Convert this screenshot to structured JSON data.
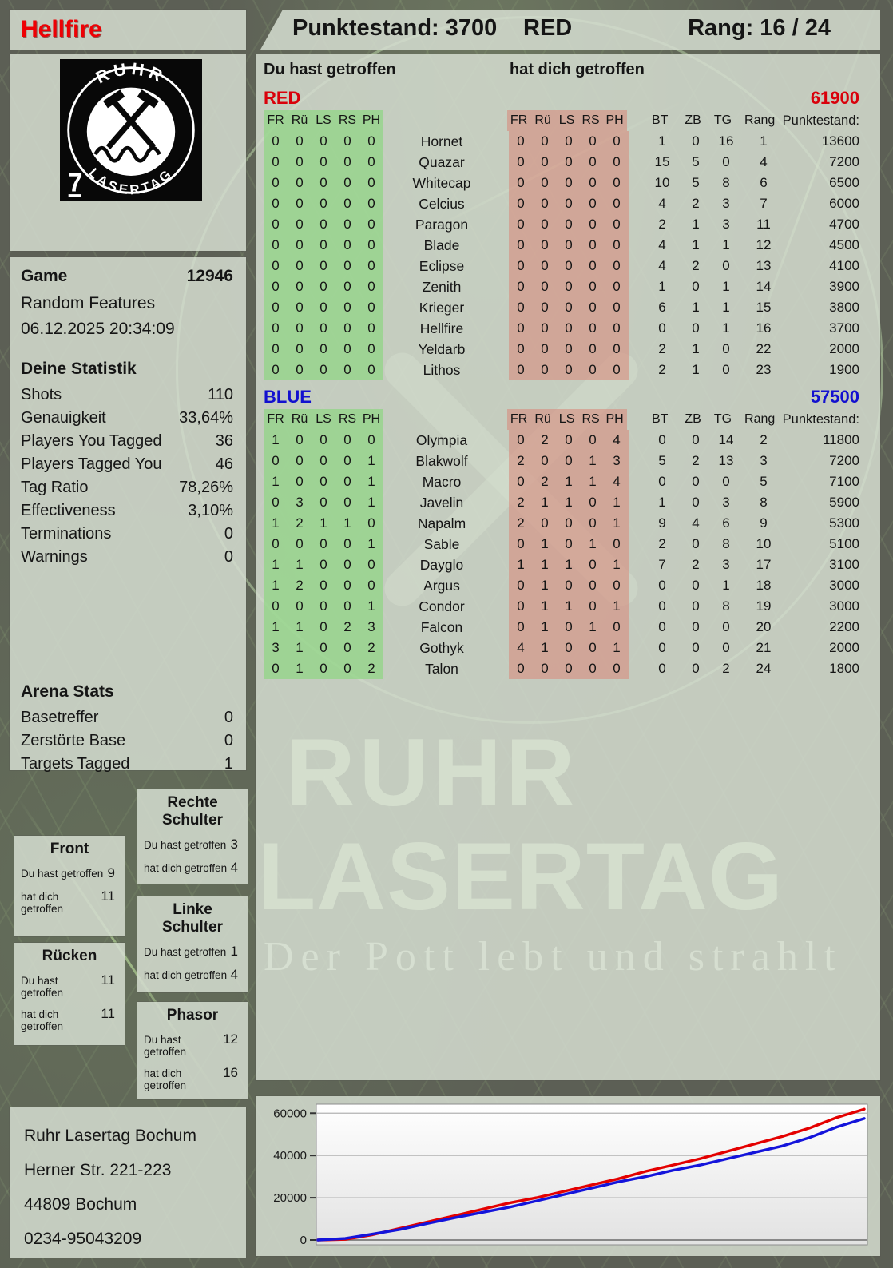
{
  "header": {
    "player": "Hellfire",
    "score": "Punktestand: 3700",
    "team": "RED",
    "rank": "Rang: 16 / 24"
  },
  "logo": {
    "arc_top": "RUHR",
    "arc_bottom": "LASERTAG",
    "corner": "7"
  },
  "game": {
    "label": "Game",
    "number": "12946",
    "mode": "Random Features",
    "datetime": "06.12.2025 20:34:09"
  },
  "your_stats": {
    "title": "Deine Statistik",
    "rows": [
      [
        "Shots",
        "110"
      ],
      [
        "Genauigkeit",
        "33,64%"
      ],
      [
        "Players You Tagged",
        "36"
      ],
      [
        "Players Tagged You",
        "46"
      ],
      [
        "Tag Ratio",
        "78,26%"
      ],
      [
        "Effectiveness",
        "3,10%"
      ],
      [
        "Terminations",
        "0"
      ],
      [
        "Warnings",
        "0"
      ]
    ]
  },
  "arena_stats": {
    "title": "Arena Stats",
    "rows": [
      [
        "Basetreffer",
        "0"
      ],
      [
        "Zerstörte Base",
        "0"
      ],
      [
        "Targets Tagged",
        "1"
      ]
    ]
  },
  "hitzones": {
    "you_label": "Du hast getroffen",
    "them_label": "hat dich getroffen",
    "boxes": [
      {
        "key": "rechte-schulter",
        "title": "Rechte Schulter",
        "you": "3",
        "them": "4"
      },
      {
        "key": "front",
        "title": "Front",
        "you": "9",
        "them": "11"
      },
      {
        "key": "linke-schulter",
        "title": "Linke Schulter",
        "you": "1",
        "them": "4"
      },
      {
        "key": "ruecken",
        "title": "Rücken",
        "you": "11",
        "them": "11"
      },
      {
        "key": "phasor",
        "title": "Phasor",
        "you": "12",
        "them": "16"
      }
    ]
  },
  "address": {
    "lines": [
      "Ruhr Lasertag Bochum",
      "Herner Str. 221-223",
      "44809 Bochum",
      "0234-95043209"
    ]
  },
  "scoreboard": {
    "you_header": "Du hast getroffen",
    "them_header": "hat dich getroffen",
    "zone_cols": [
      "FR",
      "Rü",
      "LS",
      "RS",
      "PH"
    ],
    "stat_cols": [
      "BT",
      "ZB",
      "TG",
      "Rang",
      "Punktestand:"
    ],
    "teams": [
      {
        "name": "RED",
        "total": "61900",
        "color": "#d9000b",
        "rows": [
          {
            "you": [
              0,
              0,
              0,
              0,
              0
            ],
            "name": "Hornet",
            "them": [
              0,
              0,
              0,
              0,
              0
            ],
            "stats": [
              1,
              0,
              16,
              1
            ],
            "score": "13600"
          },
          {
            "you": [
              0,
              0,
              0,
              0,
              0
            ],
            "name": "Quazar",
            "them": [
              0,
              0,
              0,
              0,
              0
            ],
            "stats": [
              15,
              5,
              0,
              4
            ],
            "score": "7200"
          },
          {
            "you": [
              0,
              0,
              0,
              0,
              0
            ],
            "name": "Whitecap",
            "them": [
              0,
              0,
              0,
              0,
              0
            ],
            "stats": [
              10,
              5,
              8,
              6
            ],
            "score": "6500"
          },
          {
            "you": [
              0,
              0,
              0,
              0,
              0
            ],
            "name": "Celcius",
            "them": [
              0,
              0,
              0,
              0,
              0
            ],
            "stats": [
              4,
              2,
              3,
              7
            ],
            "score": "6000"
          },
          {
            "you": [
              0,
              0,
              0,
              0,
              0
            ],
            "name": "Paragon",
            "them": [
              0,
              0,
              0,
              0,
              0
            ],
            "stats": [
              2,
              1,
              3,
              11
            ],
            "score": "4700"
          },
          {
            "you": [
              0,
              0,
              0,
              0,
              0
            ],
            "name": "Blade",
            "them": [
              0,
              0,
              0,
              0,
              0
            ],
            "stats": [
              4,
              1,
              1,
              12
            ],
            "score": "4500"
          },
          {
            "you": [
              0,
              0,
              0,
              0,
              0
            ],
            "name": "Eclipse",
            "them": [
              0,
              0,
              0,
              0,
              0
            ],
            "stats": [
              4,
              2,
              0,
              13
            ],
            "score": "4100"
          },
          {
            "you": [
              0,
              0,
              0,
              0,
              0
            ],
            "name": "Zenith",
            "them": [
              0,
              0,
              0,
              0,
              0
            ],
            "stats": [
              1,
              0,
              1,
              14
            ],
            "score": "3900"
          },
          {
            "you": [
              0,
              0,
              0,
              0,
              0
            ],
            "name": "Krieger",
            "them": [
              0,
              0,
              0,
              0,
              0
            ],
            "stats": [
              6,
              1,
              1,
              15
            ],
            "score": "3800"
          },
          {
            "you": [
              0,
              0,
              0,
              0,
              0
            ],
            "name": "Hellfire",
            "them": [
              0,
              0,
              0,
              0,
              0
            ],
            "stats": [
              0,
              0,
              1,
              16
            ],
            "score": "3700"
          },
          {
            "you": [
              0,
              0,
              0,
              0,
              0
            ],
            "name": "Yeldarb",
            "them": [
              0,
              0,
              0,
              0,
              0
            ],
            "stats": [
              2,
              1,
              0,
              22
            ],
            "score": "2000"
          },
          {
            "you": [
              0,
              0,
              0,
              0,
              0
            ],
            "name": "Lithos",
            "them": [
              0,
              0,
              0,
              0,
              0
            ],
            "stats": [
              2,
              1,
              0,
              23
            ],
            "score": "1900"
          }
        ]
      },
      {
        "name": "BLUE",
        "total": "57500",
        "color": "#1210cf",
        "rows": [
          {
            "you": [
              1,
              0,
              0,
              0,
              0
            ],
            "name": "Olympia",
            "them": [
              0,
              2,
              0,
              0,
              4
            ],
            "stats": [
              0,
              0,
              14,
              2
            ],
            "score": "11800"
          },
          {
            "you": [
              0,
              0,
              0,
              0,
              1
            ],
            "name": "Blakwolf",
            "them": [
              2,
              0,
              0,
              1,
              3
            ],
            "stats": [
              5,
              2,
              13,
              3
            ],
            "score": "7200"
          },
          {
            "you": [
              1,
              0,
              0,
              0,
              1
            ],
            "name": "Macro",
            "them": [
              0,
              2,
              1,
              1,
              4
            ],
            "stats": [
              0,
              0,
              0,
              5
            ],
            "score": "7100"
          },
          {
            "you": [
              0,
              3,
              0,
              0,
              1
            ],
            "name": "Javelin",
            "them": [
              2,
              1,
              1,
              0,
              1
            ],
            "stats": [
              1,
              0,
              3,
              8
            ],
            "score": "5900"
          },
          {
            "you": [
              1,
              2,
              1,
              1,
              0
            ],
            "name": "Napalm",
            "them": [
              2,
              0,
              0,
              0,
              1
            ],
            "stats": [
              9,
              4,
              6,
              9
            ],
            "score": "5300"
          },
          {
            "you": [
              0,
              0,
              0,
              0,
              1
            ],
            "name": "Sable",
            "them": [
              0,
              1,
              0,
              1,
              0
            ],
            "stats": [
              2,
              0,
              8,
              10
            ],
            "score": "5100"
          },
          {
            "you": [
              1,
              1,
              0,
              0,
              0
            ],
            "name": "Dayglo",
            "them": [
              1,
              1,
              1,
              0,
              1
            ],
            "stats": [
              7,
              2,
              3,
              17
            ],
            "score": "3100"
          },
          {
            "you": [
              1,
              2,
              0,
              0,
              0
            ],
            "name": "Argus",
            "them": [
              0,
              1,
              0,
              0,
              0
            ],
            "stats": [
              0,
              0,
              1,
              18
            ],
            "score": "3000"
          },
          {
            "you": [
              0,
              0,
              0,
              0,
              1
            ],
            "name": "Condor",
            "them": [
              0,
              1,
              1,
              0,
              1
            ],
            "stats": [
              0,
              0,
              8,
              19
            ],
            "score": "3000"
          },
          {
            "you": [
              1,
              1,
              0,
              2,
              3
            ],
            "name": "Falcon",
            "them": [
              0,
              1,
              0,
              1,
              0
            ],
            "stats": [
              0,
              0,
              0,
              20
            ],
            "score": "2200"
          },
          {
            "you": [
              3,
              1,
              0,
              0,
              2
            ],
            "name": "Gothyk",
            "them": [
              4,
              1,
              0,
              0,
              1
            ],
            "stats": [
              0,
              0,
              0,
              21
            ],
            "score": "2000"
          },
          {
            "you": [
              0,
              1,
              0,
              0,
              2
            ],
            "name": "Talon",
            "them": [
              0,
              0,
              0,
              0,
              0
            ],
            "stats": [
              0,
              0,
              2,
              24
            ],
            "score": "1800"
          }
        ]
      }
    ]
  },
  "watermark": {
    "line1": "RUHR",
    "line2": "LASERTAG",
    "tagline": "Der Pott lebt und strahlt"
  },
  "chart_data": {
    "type": "line",
    "title": "",
    "xlabel": "",
    "ylabel": "",
    "yticks": [
      0,
      20000,
      40000,
      60000
    ],
    "ylim": [
      0,
      63500
    ],
    "grid": true,
    "legend_position": "none",
    "x_description": "game time, evenly spaced samples",
    "series": [
      {
        "name": "RED",
        "color": "#e40000",
        "values": [
          0,
          300,
          2500,
          5500,
          8500,
          11500,
          14500,
          17500,
          20000,
          23000,
          26000,
          29000,
          32500,
          35500,
          38500,
          42000,
          45500,
          49000,
          53000,
          58000,
          61900
        ]
      },
      {
        "name": "BLUE",
        "color": "#1414db",
        "values": [
          0,
          700,
          2800,
          5000,
          7800,
          10500,
          13000,
          15500,
          18500,
          21500,
          24500,
          27500,
          30000,
          33000,
          35500,
          38500,
          41500,
          44500,
          48500,
          53500,
          57500
        ]
      }
    ]
  }
}
